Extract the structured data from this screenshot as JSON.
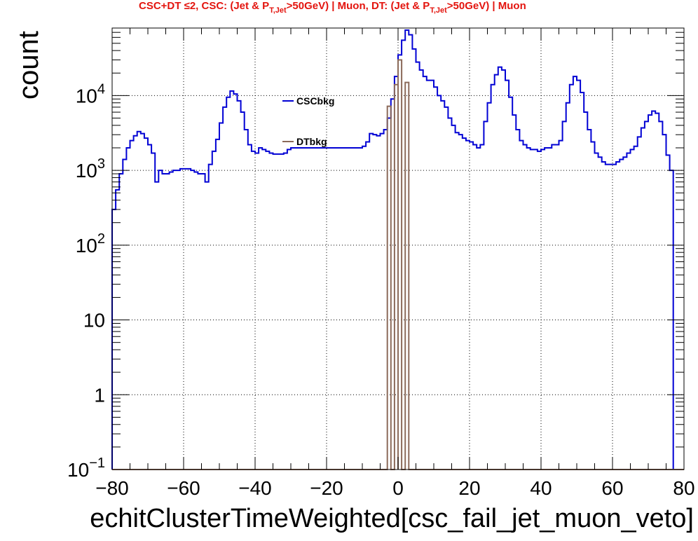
{
  "chart_data": {
    "type": "histogram-step",
    "title_parts": {
      "prefix": "CSC+DT ≤2, CSC: (Jet & P",
      "sub1": "T,Jet",
      "mid": ">50GeV) | Muon, DT: (Jet & P",
      "sub2": "T,Jet",
      "suffix": ">50GeV) | Muon"
    },
    "xlabel": "echitClusterTimeWeighted[csc_fail_jet_muon_veto]",
    "ylabel": "count",
    "xlim": [
      -80,
      80
    ],
    "ylim": [
      0.1,
      80000
    ],
    "y_scale": "log",
    "bin_width": 1,
    "x_ticks": [
      -80,
      -60,
      -40,
      -20,
      0,
      20,
      40,
      60,
      80
    ],
    "x_tick_labels": [
      "−80",
      "−60",
      "−40",
      "−20",
      "0",
      "20",
      "40",
      "60",
      "80"
    ],
    "y_ticks": [
      0.1,
      1,
      10,
      100,
      1000,
      10000
    ],
    "y_tick_labels": [
      "10^-1",
      "1",
      "10",
      "10^2",
      "10^3",
      "10^4"
    ],
    "grid": true,
    "legend_placement": "top-center",
    "series": [
      {
        "name": "CSCbkg",
        "color": "#0000d4",
        "x_start": -80,
        "values": [
          300,
          550,
          900,
          1400,
          2000,
          2500,
          2900,
          3300,
          3100,
          2700,
          2200,
          1700,
          700,
          1000,
          900,
          900,
          950,
          1000,
          1000,
          1050,
          1050,
          1050,
          1000,
          950,
          900,
          900,
          700,
          1200,
          1800,
          2600,
          4300,
          7000,
          9500,
          11500,
          10500,
          8500,
          6000,
          3500,
          2200,
          1800,
          1700,
          2000,
          1900,
          1800,
          1700,
          1650,
          1650,
          1650,
          1700,
          1900,
          2000,
          2000,
          2000,
          2000,
          2000,
          2000,
          2000,
          2000,
          2000,
          2000,
          2000,
          2000,
          2000,
          2000,
          2000,
          2000,
          2000,
          2000,
          2000,
          2000,
          2100,
          2400,
          3100,
          3000,
          2900,
          3100,
          3500,
          5000,
          9000,
          18000,
          35000,
          55000,
          75000,
          65000,
          42000,
          28000,
          22000,
          18000,
          16000,
          16000,
          13000,
          10000,
          8500,
          7000,
          5000,
          4000,
          3200,
          3000,
          2700,
          2500,
          2400,
          2200,
          2000,
          2200,
          4500,
          8000,
          14000,
          19000,
          24000,
          22000,
          16000,
          9500,
          5500,
          3500,
          2500,
          2200,
          2000,
          1900,
          1900,
          1800,
          1900,
          2000,
          2000,
          2200,
          2200,
          2500,
          4500,
          8000,
          14000,
          18000,
          16000,
          11000,
          6000,
          3500,
          2400,
          1700,
          1500,
          1300,
          1200,
          1200,
          1200,
          1300,
          1400,
          1500,
          1700,
          1900,
          2100,
          2800,
          3700,
          4500,
          5500,
          6200,
          5800,
          4500,
          3000,
          1600,
          1000
        ]
      },
      {
        "name": "DTbkg",
        "color": "#8b6a5a",
        "x_start": -80,
        "bins": [
          {
            "x": -3,
            "y": 7200
          },
          {
            "x": -1,
            "y": 14000
          },
          {
            "x": 0,
            "y": 30000
          },
          {
            "x": 2,
            "y": 15000
          }
        ]
      }
    ]
  }
}
